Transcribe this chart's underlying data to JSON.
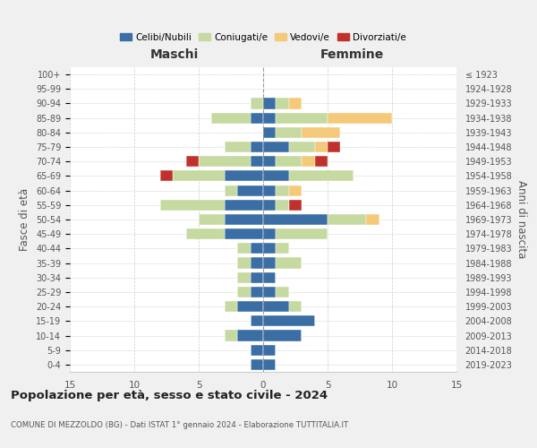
{
  "age_groups": [
    "0-4",
    "5-9",
    "10-14",
    "15-19",
    "20-24",
    "25-29",
    "30-34",
    "35-39",
    "40-44",
    "45-49",
    "50-54",
    "55-59",
    "60-64",
    "65-69",
    "70-74",
    "75-79",
    "80-84",
    "85-89",
    "90-94",
    "95-99",
    "100+"
  ],
  "birth_years": [
    "2019-2023",
    "2014-2018",
    "2009-2013",
    "2004-2008",
    "1999-2003",
    "1994-1998",
    "1989-1993",
    "1984-1988",
    "1979-1983",
    "1974-1978",
    "1969-1973",
    "1964-1968",
    "1959-1963",
    "1954-1958",
    "1949-1953",
    "1944-1948",
    "1939-1943",
    "1934-1938",
    "1929-1933",
    "1924-1928",
    "≤ 1923"
  ],
  "colors": {
    "celibi": "#3a6ea5",
    "coniugati": "#c5d9a0",
    "vedovi": "#f5c97a",
    "divorziati": "#c0312b"
  },
  "maschi": {
    "celibi": [
      1,
      1,
      2,
      1,
      2,
      1,
      1,
      1,
      1,
      3,
      3,
      3,
      2,
      3,
      1,
      1,
      0,
      1,
      0,
      0,
      0
    ],
    "coniugati": [
      0,
      0,
      1,
      0,
      1,
      1,
      1,
      1,
      1,
      3,
      2,
      5,
      1,
      4,
      4,
      2,
      0,
      3,
      1,
      0,
      0
    ],
    "vedovi": [
      0,
      0,
      0,
      0,
      0,
      0,
      0,
      0,
      0,
      0,
      0,
      0,
      0,
      0,
      0,
      0,
      0,
      0,
      0,
      0,
      0
    ],
    "divorziati": [
      0,
      0,
      0,
      0,
      0,
      0,
      0,
      0,
      0,
      0,
      0,
      0,
      0,
      1,
      1,
      0,
      0,
      0,
      0,
      0,
      0
    ]
  },
  "femmine": {
    "celibi": [
      1,
      1,
      3,
      4,
      2,
      1,
      1,
      1,
      1,
      1,
      5,
      1,
      1,
      2,
      1,
      2,
      1,
      1,
      1,
      0,
      0
    ],
    "coniugati": [
      0,
      0,
      0,
      0,
      1,
      1,
      0,
      2,
      1,
      4,
      3,
      1,
      1,
      5,
      2,
      2,
      2,
      4,
      1,
      0,
      0
    ],
    "vedovi": [
      0,
      0,
      0,
      0,
      0,
      0,
      0,
      0,
      0,
      0,
      1,
      0,
      1,
      0,
      1,
      1,
      3,
      5,
      1,
      0,
      0
    ],
    "divorziati": [
      0,
      0,
      0,
      0,
      0,
      0,
      0,
      0,
      0,
      0,
      0,
      1,
      0,
      0,
      1,
      1,
      0,
      0,
      0,
      0,
      0
    ]
  },
  "xlim": 15,
  "title": "Popolazione per età, sesso e stato civile - 2024",
  "subtitle": "COMUNE DI MEZZOLDO (BG) - Dati ISTAT 1° gennaio 2024 - Elaborazione TUTTITALIA.IT",
  "ylabel_left": "Fasce di età",
  "ylabel_right": "Anni di nascita",
  "xlabel_left": "Maschi",
  "xlabel_right": "Femmine",
  "bg_color": "#f0f0f0",
  "plot_bg": "#ffffff"
}
